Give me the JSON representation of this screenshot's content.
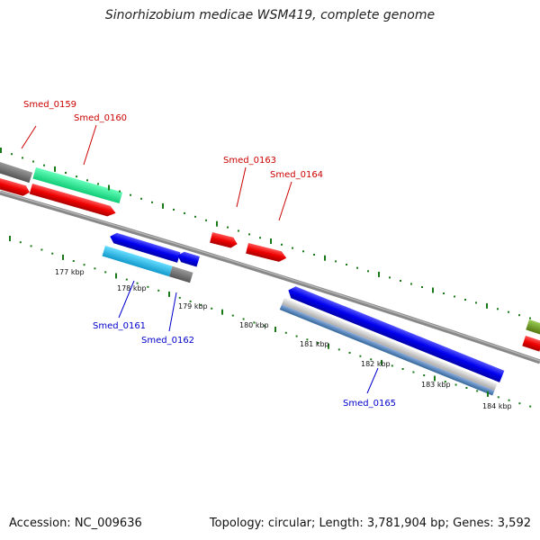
{
  "title": "Sinorhizobium medicae WSM419, complete genome",
  "footer": {
    "accession": "Accession: NC_009636",
    "summary": "Topology: circular; Length: 3,781,904 bp; Genes: 3,592"
  },
  "colors": {
    "backbone": "#888888",
    "tick": "#1a7a1a",
    "forward_label": "#cc0000",
    "reverse_label": "#0000cc",
    "red": "#ee0000",
    "blue": "#0000ee",
    "gray": "#6e6e6e",
    "teal": "#22ee99",
    "cyan": "#22bbee",
    "olive": "#669922"
  },
  "scale_labels": [
    "177 kbp",
    "178 kbp",
    "179 kbp",
    "180 kbp",
    "181 kbp",
    "182 kbp",
    "183 kbp",
    "184 kbp"
  ],
  "gene_labels": {
    "forward": [
      "Smed_0159",
      "Smed_0160",
      "Smed_0163",
      "Smed_0164"
    ],
    "reverse": [
      "Smed_0161",
      "Smed_0162",
      "Smed_0165"
    ]
  }
}
